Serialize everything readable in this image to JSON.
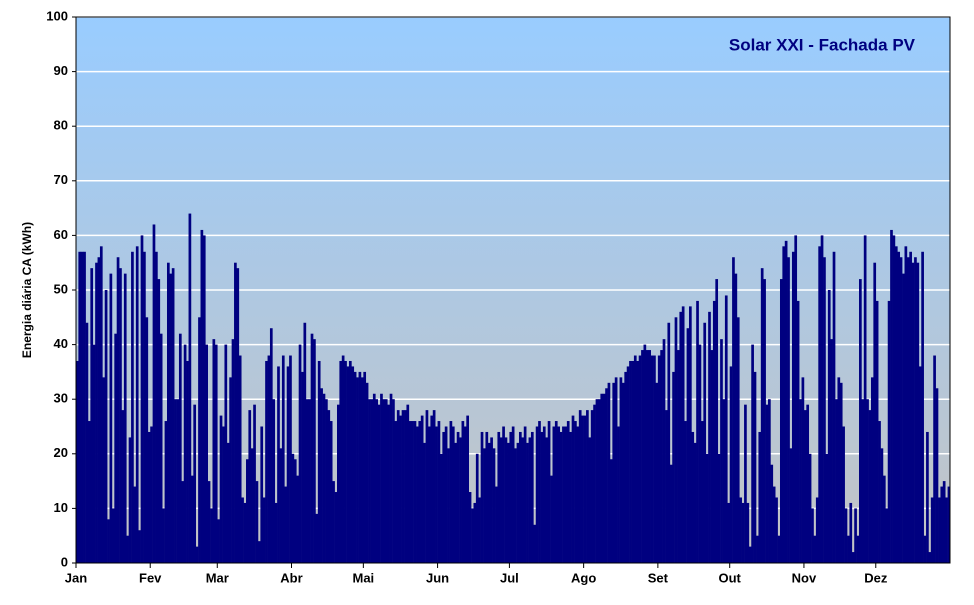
{
  "chart_data": {
    "type": "bar",
    "title": "Solar XXI - Fachada PV",
    "y_label": "Energia diária CA (kWh)",
    "color": "#000080",
    "grid": true,
    "ylim": [
      0,
      100
    ],
    "yticks": [
      0,
      10,
      20,
      30,
      40,
      50,
      60,
      70,
      80,
      90,
      100
    ],
    "categories": [
      "Jan",
      null,
      null,
      null,
      null,
      null,
      null,
      null,
      null,
      null,
      null,
      null,
      null,
      null,
      null,
      null,
      null,
      null,
      null,
      null,
      null,
      null,
      null,
      null,
      null,
      null,
      null,
      null,
      null,
      null,
      null,
      "Fev",
      null,
      null,
      null,
      null,
      null,
      null,
      null,
      null,
      null,
      null,
      null,
      null,
      null,
      null,
      null,
      null,
      null,
      null,
      null,
      null,
      null,
      null,
      null,
      null,
      null,
      null,
      null,
      "Mar",
      null,
      null,
      null,
      null,
      null,
      null,
      null,
      null,
      null,
      null,
      null,
      null,
      null,
      null,
      null,
      null,
      null,
      null,
      null,
      null,
      null,
      null,
      null,
      null,
      null,
      null,
      null,
      null,
      null,
      null,
      "Abr",
      null,
      null,
      null,
      null,
      null,
      null,
      null,
      null,
      null,
      null,
      null,
      null,
      null,
      null,
      null,
      null,
      null,
      null,
      null,
      null,
      null,
      null,
      null,
      null,
      null,
      null,
      null,
      null,
      null,
      "Mai",
      null,
      null,
      null,
      null,
      null,
      null,
      null,
      null,
      null,
      null,
      null,
      null,
      null,
      null,
      null,
      null,
      null,
      null,
      null,
      null,
      null,
      null,
      null,
      null,
      null,
      null,
      null,
      null,
      null,
      null,
      "Jun",
      null,
      null,
      null,
      null,
      null,
      null,
      null,
      null,
      null,
      null,
      null,
      null,
      null,
      null,
      null,
      null,
      null,
      null,
      null,
      null,
      null,
      null,
      null,
      null,
      null,
      null,
      null,
      null,
      null,
      "Jul",
      null,
      null,
      null,
      null,
      null,
      null,
      null,
      null,
      null,
      null,
      null,
      null,
      null,
      null,
      null,
      null,
      null,
      null,
      null,
      null,
      null,
      null,
      null,
      null,
      null,
      null,
      null,
      null,
      null,
      null,
      "Ago",
      null,
      null,
      null,
      null,
      null,
      null,
      null,
      null,
      null,
      null,
      null,
      null,
      null,
      null,
      null,
      null,
      null,
      null,
      null,
      null,
      null,
      null,
      null,
      null,
      null,
      null,
      null,
      null,
      null,
      null,
      "Set",
      null,
      null,
      null,
      null,
      null,
      null,
      null,
      null,
      null,
      null,
      null,
      null,
      null,
      null,
      null,
      null,
      null,
      null,
      null,
      null,
      null,
      null,
      null,
      null,
      null,
      null,
      null,
      null,
      null,
      "Out",
      null,
      null,
      null,
      null,
      null,
      null,
      null,
      null,
      null,
      null,
      null,
      null,
      null,
      null,
      null,
      null,
      null,
      null,
      null,
      null,
      null,
      null,
      null,
      null,
      null,
      null,
      null,
      null,
      null,
      null,
      "Nov",
      null,
      null,
      null,
      null,
      null,
      null,
      null,
      null,
      null,
      null,
      null,
      null,
      null,
      null,
      null,
      null,
      null,
      null,
      null,
      null,
      null,
      null,
      null,
      null,
      null,
      null,
      null,
      null,
      null,
      "Dez",
      null,
      null,
      null,
      null,
      null,
      null,
      null,
      null,
      null,
      null,
      null,
      null,
      null,
      null,
      null,
      null,
      null,
      null,
      null,
      null,
      null,
      null,
      null,
      null,
      null,
      null,
      null,
      null,
      null,
      null
    ],
    "values": [
      37,
      57,
      57,
      57,
      44,
      26,
      54,
      40,
      55,
      56,
      58,
      34,
      50,
      8,
      53,
      10,
      42,
      56,
      54,
      28,
      53,
      5,
      23,
      57,
      14,
      58,
      6,
      60,
      57,
      45,
      24,
      25,
      62,
      57,
      52,
      42,
      10,
      26,
      55,
      53,
      54,
      30,
      30,
      42,
      15,
      40,
      37,
      64,
      16,
      29,
      3,
      45,
      61,
      60,
      40,
      15,
      10,
      41,
      40,
      8,
      27,
      25,
      40,
      22,
      34,
      41,
      55,
      54,
      38,
      12,
      11,
      19,
      28,
      21,
      29,
      15,
      4,
      25,
      12,
      37,
      38,
      43,
      30,
      11,
      36,
      21,
      38,
      14,
      36,
      38,
      20,
      19,
      16,
      40,
      35,
      44,
      30,
      30,
      42,
      41,
      9,
      37,
      32,
      31,
      30,
      28,
      26,
      15,
      13,
      29,
      37,
      38,
      37,
      36,
      37,
      36,
      35,
      34,
      35,
      34,
      35,
      33,
      30,
      30,
      31,
      30,
      29,
      31,
      30,
      30,
      29,
      31,
      30,
      26,
      28,
      27,
      28,
      28,
      29,
      26,
      26,
      26,
      25,
      26,
      27,
      22,
      28,
      25,
      27,
      28,
      25,
      26,
      20,
      24,
      25,
      21,
      26,
      25,
      22,
      24,
      23,
      26,
      25,
      27,
      13,
      10,
      11,
      20,
      12,
      24,
      21,
      24,
      22,
      23,
      21,
      14,
      24,
      23,
      25,
      23,
      22,
      24,
      25,
      21,
      22,
      24,
      23,
      25,
      22,
      23,
      24,
      7,
      25,
      26,
      24,
      25,
      23,
      26,
      16,
      25,
      26,
      25,
      24,
      25,
      25,
      26,
      24,
      27,
      26,
      25,
      28,
      27,
      27,
      28,
      23,
      28,
      29,
      30,
      30,
      31,
      31,
      32,
      33,
      19,
      33,
      34,
      25,
      34,
      33,
      35,
      36,
      37,
      37,
      38,
      37,
      38,
      39,
      40,
      39,
      39,
      38,
      38,
      33,
      38,
      39,
      41,
      28,
      44,
      18,
      35,
      45,
      39,
      46,
      47,
      26,
      43,
      47,
      24,
      22,
      48,
      40,
      26,
      44,
      20,
      46,
      39,
      48,
      52,
      20,
      41,
      30,
      49,
      11,
      36,
      56,
      53,
      45,
      12,
      11,
      29,
      11,
      3,
      40,
      35,
      5,
      24,
      54,
      52,
      29,
      30,
      18,
      14,
      12,
      5,
      52,
      58,
      59,
      56,
      21,
      57,
      60,
      48,
      30,
      34,
      28,
      29,
      20,
      10,
      5,
      12,
      58,
      60,
      56,
      20,
      50,
      41,
      57,
      30,
      34,
      33,
      25,
      10,
      5,
      11,
      2,
      10,
      5,
      52,
      30,
      60,
      30,
      28,
      34,
      55,
      48,
      26,
      21,
      16,
      10,
      48,
      61,
      60,
      58,
      57,
      56,
      53,
      58,
      56,
      57,
      55,
      56,
      55,
      36,
      57,
      5,
      24,
      2,
      12,
      38,
      32,
      12,
      14,
      15,
      12,
      14
    ]
  }
}
